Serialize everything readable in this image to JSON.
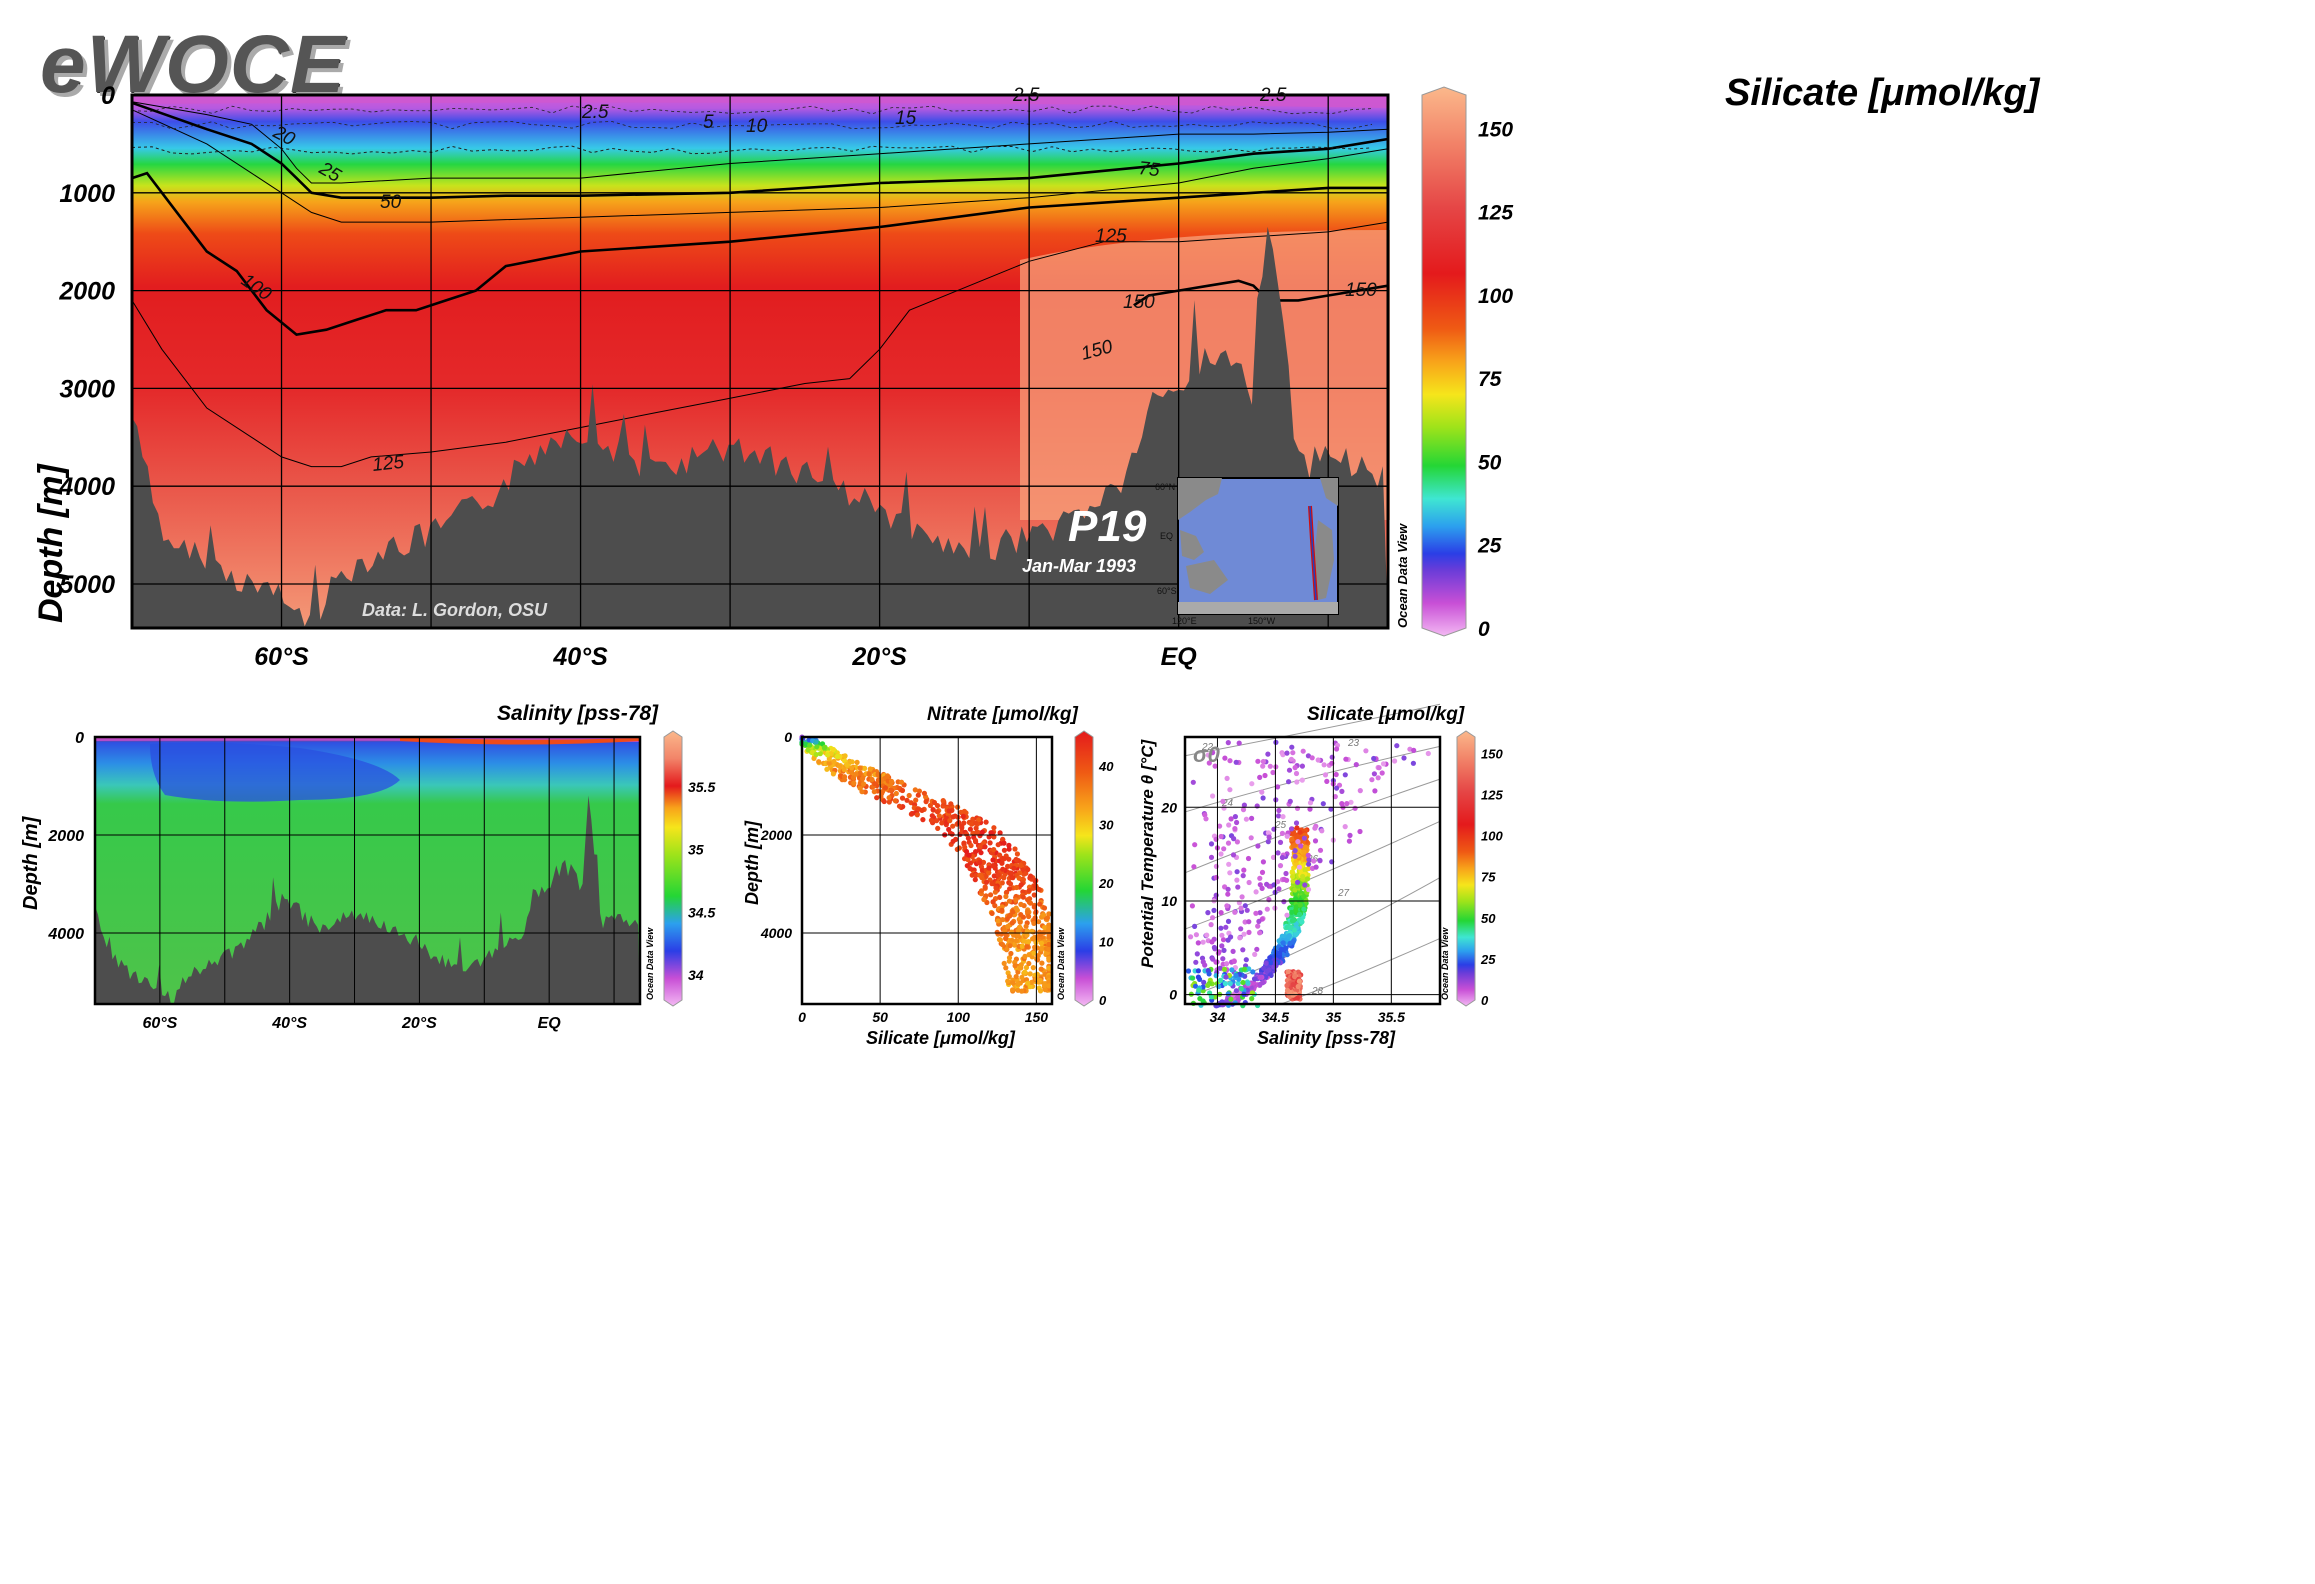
{
  "logo": "eWOCE",
  "colors": {
    "land": "#4d4d4d",
    "grid": "#000000",
    "white_text": "#ffffff"
  },
  "main": {
    "title": "Silicate [μmol/kg]",
    "ylabel": "Depth [m]",
    "section_label": "P19",
    "date_label": "Jan-Mar 1993",
    "credit": "Data: L. Gordon, OSU",
    "watermark": "Ocean Data View",
    "map_labels": [
      "60°N",
      "EQ",
      "60°S",
      "120°E",
      "150°W"
    ]
  },
  "salinity": {
    "title": "Salinity [pss-78]",
    "ylabel": "Depth [m]",
    "watermark": "Ocean Data View"
  },
  "nitrate": {
    "title": "Nitrate [μmol/kg]",
    "ylabel": "Depth [m]",
    "xlabel": "Silicate [μmol/kg]",
    "watermark": "Ocean Data View"
  },
  "ts": {
    "title": "Silicate [μmol/kg]",
    "ylabel": "Potential Temperature θ [°C]",
    "xlabel": "Salinity [pss-78]",
    "sigma_label": "σ0",
    "watermark": "Ocean Data View"
  },
  "chart_data": [
    {
      "type": "heatmap",
      "title": "Silicate [μmol/kg]",
      "xlabel": "",
      "ylabel": "Depth [m]",
      "x_ticks": [
        "60°S",
        "40°S",
        "20°S",
        "EQ"
      ],
      "x_tick_lat": [
        -60,
        -40,
        -20,
        0
      ],
      "xlim": [
        -70,
        14
      ],
      "y_ticks": [
        0,
        1000,
        2000,
        3000,
        4000,
        5000
      ],
      "ylim": [
        5450,
        0
      ],
      "colorbar": {
        "ticks": [
          0,
          25,
          50,
          75,
          100,
          125,
          150
        ],
        "range": [
          0,
          160
        ]
      },
      "contour_labels": [
        "2.5",
        "5",
        "10",
        "15",
        "20",
        "25",
        "50",
        "75",
        "100",
        "125",
        "150",
        "125",
        "150",
        "150",
        "2.5",
        "2.5"
      ],
      "depth_profile": {
        "lat": [
          -70,
          -68,
          -65,
          -62,
          -60,
          -58,
          -56,
          -54,
          -52,
          -50,
          -48,
          -46,
          -44,
          -42,
          -40,
          -38,
          -36,
          -34,
          -32,
          -30,
          -28,
          -26,
          -24,
          -22,
          -20,
          -18,
          -16,
          -14,
          -12,
          -10,
          -8,
          -6,
          -4,
          -3,
          -2,
          0,
          2,
          4,
          5,
          6,
          8,
          10,
          12,
          14
        ],
        "depth": [
          3300,
          4500,
          4800,
          5000,
          5200,
          5400,
          4900,
          4700,
          4600,
          4500,
          4300,
          4100,
          3800,
          3500,
          3400,
          3600,
          3900,
          3800,
          3700,
          3600,
          3700,
          3800,
          3900,
          4100,
          4200,
          4500,
          4600,
          4800,
          4600,
          4500,
          4400,
          4200,
          4000,
          3700,
          3200,
          3000,
          2600,
          2800,
          3200,
          1100,
          3800,
          3700,
          3800,
          3900
        ]
      },
      "isolines": [
        {
          "level": 25,
          "lat": [
            -70,
            -65,
            -62,
            -60,
            -59,
            -58,
            -56,
            -50,
            -40,
            -30,
            -20,
            -10,
            0,
            5,
            10,
            14
          ],
          "depth": [
            70,
            200,
            300,
            550,
            750,
            900,
            900,
            850,
            850,
            700,
            600,
            500,
            400,
            400,
            380,
            350
          ]
        },
        {
          "level": 50,
          "lat": [
            -70,
            -65,
            -62,
            -60,
            -59,
            -58,
            -56,
            -50,
            -45,
            -40,
            -30,
            -20,
            -10,
            0,
            5,
            10,
            14
          ],
          "depth": [
            80,
            350,
            500,
            700,
            850,
            1000,
            1050,
            1050,
            1030,
            1030,
            1000,
            900,
            850,
            700,
            600,
            550,
            450
          ]
        },
        {
          "level": 75,
          "lat": [
            -70,
            -65,
            -62,
            -60,
            -58,
            -56,
            -50,
            -40,
            -30,
            -20,
            -10,
            0,
            5,
            10,
            14
          ],
          "depth": [
            150,
            500,
            800,
            1000,
            1200,
            1300,
            1300,
            1250,
            1200,
            1150,
            1050,
            900,
            750,
            650,
            550
          ]
        },
        {
          "level": 100,
          "lat": [
            -70,
            -69,
            -67,
            -65,
            -63,
            -61,
            -59,
            -57,
            -55,
            -53,
            -51,
            -49,
            -47,
            -45,
            -40,
            -30,
            -20,
            -10,
            0,
            5,
            10,
            14
          ],
          "depth": [
            850,
            800,
            1200,
            1600,
            1800,
            2200,
            2450,
            2400,
            2300,
            2200,
            2200,
            2100,
            2000,
            1750,
            1600,
            1500,
            1350,
            1150,
            1050,
            1000,
            950,
            950
          ]
        },
        {
          "level": 125,
          "lat": [
            -70,
            -68,
            -65,
            -62,
            -60,
            -58,
            -56,
            -54,
            -50,
            -45,
            -40,
            -35,
            -30,
            -25,
            -22,
            -20,
            -18,
            -10,
            -5,
            0,
            5,
            10,
            14
          ],
          "depth": [
            2100,
            2600,
            3200,
            3500,
            3700,
            3800,
            3800,
            3700,
            3650,
            3550,
            3400,
            3250,
            3100,
            2950,
            2900,
            2600,
            2200,
            1700,
            1500,
            1500,
            1450,
            1400,
            1300
          ]
        },
        {
          "level": 150,
          "lat": [
            -3,
            -2,
            0,
            2,
            4,
            5,
            6,
            8,
            10,
            12,
            14
          ],
          "depth": [
            2150,
            2050,
            2000,
            1950,
            1900,
            1950,
            2100,
            2100,
            2050,
            2000,
            1950
          ]
        }
      ]
    },
    {
      "type": "heatmap",
      "title": "Salinity [pss-78]",
      "ylabel": "Depth [m]",
      "x_ticks": [
        "60°S",
        "40°S",
        "20°S",
        "EQ"
      ],
      "x_tick_lat": [
        -60,
        -40,
        -20,
        0
      ],
      "xlim": [
        -70,
        14
      ],
      "y_ticks": [
        0,
        2000,
        4000
      ],
      "ylim": [
        5450,
        0
      ],
      "colorbar": {
        "ticks": [
          34,
          34.5,
          35,
          35.5
        ],
        "range": [
          33.8,
          35.9
        ]
      }
    },
    {
      "type": "scatter",
      "title": "Nitrate [μmol/kg]",
      "xlabel": "Silicate [μmol/kg]",
      "ylabel": "Depth [m]",
      "x_ticks": [
        0,
        50,
        100,
        150
      ],
      "xlim": [
        0,
        160
      ],
      "y_ticks": [
        0,
        2000,
        4000
      ],
      "ylim": [
        5450,
        0
      ],
      "colorbar": {
        "ticks": [
          0,
          10,
          20,
          30,
          40
        ],
        "range": [
          0,
          45
        ]
      },
      "profile": {
        "silicate": [
          0,
          10,
          30,
          60,
          90,
          110,
          125,
          135,
          145,
          152,
          156
        ],
        "depth": [
          0,
          200,
          600,
          1100,
          1500,
          1900,
          2400,
          3000,
          3600,
          4300,
          5200
        ],
        "nitrate": [
          5,
          25,
          33,
          38,
          40,
          42,
          42,
          40,
          36,
          34,
          33
        ]
      }
    },
    {
      "type": "scatter",
      "title": "Silicate [μmol/kg]",
      "xlabel": "Salinity [pss-78]",
      "ylabel": "Potential Temperature θ [°C]",
      "x_ticks": [
        34,
        34.5,
        35,
        35.5
      ],
      "xlim": [
        33.72,
        35.92
      ],
      "y_ticks": [
        0,
        10,
        20
      ],
      "ylim": [
        -1,
        27.5
      ],
      "colorbar": {
        "ticks": [
          0,
          25,
          50,
          75,
          100,
          125,
          150
        ],
        "range": [
          0,
          160
        ]
      },
      "density_labels": [
        "22",
        "23",
        "24",
        "25",
        "26",
        "27",
        "28"
      ],
      "curve": {
        "salinity": [
          34.0,
          34.2,
          34.4,
          34.55,
          34.65,
          34.7,
          34.72,
          34.7
        ],
        "theta": [
          -1.5,
          0,
          2,
          4.5,
          7,
          10,
          14,
          18
        ],
        "silicate": [
          20,
          8,
          14,
          25,
          40,
          55,
          75,
          105
        ]
      }
    }
  ]
}
